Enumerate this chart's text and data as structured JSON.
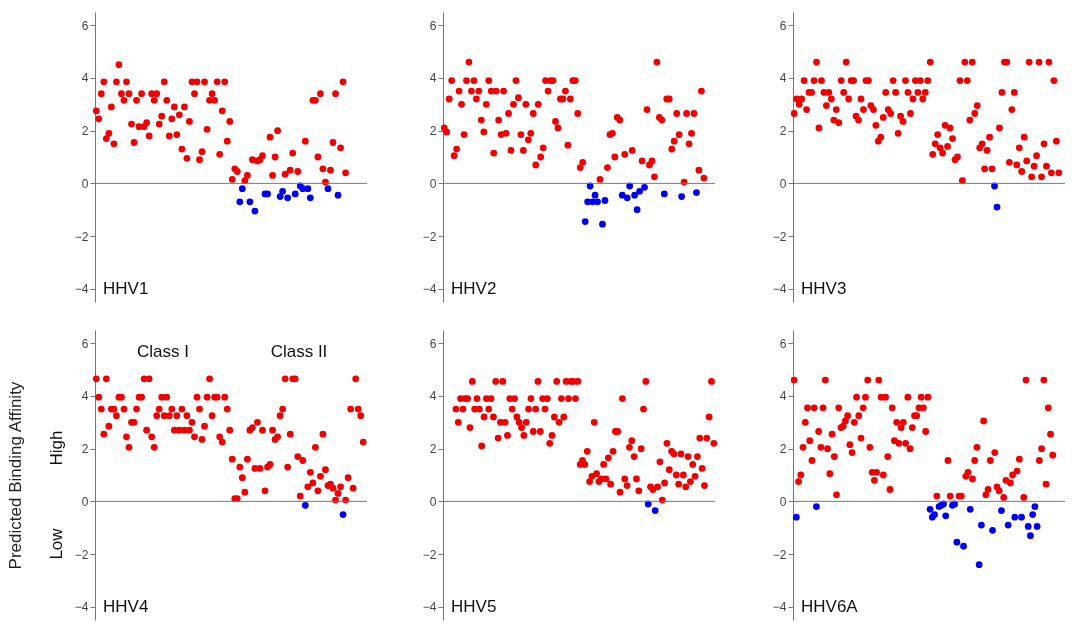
{
  "chart_data": [
    {
      "type": "scatter",
      "title": "HHV1",
      "marker": "circle",
      "ylim": [
        -4.5,
        6.5
      ],
      "yticks": [
        -4,
        -2,
        0,
        2,
        4,
        6
      ],
      "tick_labels": "y",
      "ref_lines": [
        {
          "axis": "y",
          "value": 0
        }
      ],
      "categories": [
        null,
        null,
        null,
        null,
        null,
        null,
        null,
        null,
        null,
        null,
        null,
        null,
        null,
        null,
        null,
        null,
        null,
        null,
        null,
        null,
        null,
        null,
        null,
        null,
        null,
        null,
        null,
        null,
        null,
        null,
        null,
        null,
        null,
        null,
        null,
        null,
        null,
        null,
        null,
        null,
        null,
        null,
        null,
        null,
        null,
        null,
        null,
        null,
        null,
        null,
        null,
        null,
        null,
        null,
        null,
        null,
        null,
        null,
        null,
        null,
        null,
        null,
        null,
        null,
        null,
        null,
        null,
        null,
        null,
        null,
        null,
        null,
        null,
        null,
        null,
        null,
        null,
        null,
        null,
        null,
        null,
        null,
        null,
        null,
        null,
        null,
        null,
        null,
        null,
        null,
        null,
        null,
        null,
        null,
        null,
        null,
        null,
        null,
        null,
        null,
        null,
        null,
        null,
        null,
        null,
        null,
        null,
        null
      ],
      "values": [
        2.75,
        2.45,
        3.4,
        3.85,
        1.7,
        1.9,
        2.9,
        1.5,
        3.85,
        4.5,
        3.4,
        3.15,
        3.85,
        3.4,
        2.25,
        1.55,
        3.15,
        2.15,
        3.4,
        2.15,
        2.3,
        1.8,
        3.4,
        3.15,
        3.4,
        2.25,
        2.55,
        3.85,
        3.15,
        1.8,
        2.45,
        2.9,
        1.85,
        2.6,
        1.3,
        2.9,
        0.95,
        2.35,
        3.85,
        3.4,
        3.85,
        0.9,
        1.2,
        3.85,
        2.05,
        3.15,
        3.4,
        3.15,
        3.85,
        1.1,
        2.75,
        3.85,
        1.6,
        2.35,
        0.15,
        0.55,
        0.45,
        -0.7,
        -0.2,
        0.1,
        0.3,
        -0.7,
        0.9,
        -1.05,
        0.85,
        0.9,
        1.05,
        -0.4,
        -0.4,
        1.75,
        0.3,
        1.0,
        2.0,
        -0.5,
        -0.3,
        0.35,
        -0.55,
        0.5,
        1.15,
        -0.4,
        0.45,
        -0.1,
        -0.2,
        1.6,
        -0.2,
        -0.55,
        3.15,
        3.15,
        1.0,
        3.4,
        0.55,
        0.05,
        -0.2,
        0.5,
        1.55,
        3.4,
        -0.45,
        1.35,
        3.85,
        0.4,
        null,
        null,
        null,
        null,
        null,
        null,
        null,
        null
      ],
      "colors": [
        "#f00000",
        "#f00000",
        "#f00000",
        "#f00000",
        "#f00000",
        "#f00000",
        "#f00000",
        "#f00000",
        "#f00000",
        "#f00000",
        "#f00000",
        "#f00000",
        "#f00000",
        "#f00000",
        "#f00000",
        "#f00000",
        "#f00000",
        "#f00000",
        "#f00000",
        "#f00000",
        "#f00000",
        "#f00000",
        "#f00000",
        "#f00000",
        "#f00000",
        "#f00000",
        "#f00000",
        "#f00000",
        "#f00000",
        "#f00000",
        "#f00000",
        "#f00000",
        "#f00000",
        "#f00000",
        "#f00000",
        "#f00000",
        "#f00000",
        "#f00000",
        "#f00000",
        "#f00000",
        "#f00000",
        "#f00000",
        "#f00000",
        "#f00000",
        "#f00000",
        "#f00000",
        "#f00000",
        "#f00000",
        "#f00000",
        "#f00000",
        "#f00000",
        "#f00000",
        "#f00000",
        "#f00000",
        "#f00000",
        "#f00000",
        "#f00000",
        "#0000f0",
        "#0000f0",
        "#f00000",
        "#f00000",
        "#0000f0",
        "#f00000",
        "#0000f0",
        "#f00000",
        "#f00000",
        "#f00000",
        "#0000f0",
        "#0000f0",
        "#f00000",
        "#f00000",
        "#f00000",
        "#f00000",
        "#0000f0",
        "#0000f0",
        "#f00000",
        "#0000f0",
        "#f00000",
        "#f00000",
        "#0000f0",
        "#f00000",
        "#0000f0",
        "#0000f0",
        "#f00000",
        "#0000f0",
        "#0000f0",
        "#f00000",
        "#f00000",
        "#f00000",
        "#f00000",
        "#f00000",
        "#f00000",
        "#0000f0",
        "#f00000",
        "#f00000",
        "#f00000",
        "#0000f0",
        "#f00000",
        "#f00000",
        "#f00000",
        null,
        null,
        null,
        null,
        null,
        null,
        null,
        null
      ]
    },
    {
      "type": "scatter",
      "title": "HHV2",
      "marker": "circle",
      "ylim": [
        -4.5,
        6.5
      ],
      "yticks": [
        -4,
        -2,
        0,
        2,
        4,
        6
      ],
      "tick_labels": "y",
      "ref_lines": [
        {
          "axis": "y",
          "value": 0
        }
      ],
      "categories": [
        null,
        null,
        null,
        null,
        null,
        null,
        null,
        null,
        null,
        null,
        null,
        null,
        null,
        null,
        null,
        null,
        null,
        null,
        null,
        null,
        null,
        null,
        null,
        null,
        null,
        null,
        null,
        null,
        null,
        null,
        null,
        null,
        null,
        null,
        null,
        null,
        null,
        null,
        null,
        null,
        null,
        null,
        null,
        null,
        null,
        null,
        null,
        null,
        null,
        null,
        null,
        null,
        null,
        null,
        null,
        null,
        null,
        null,
        null,
        null,
        null,
        null,
        null,
        null,
        null,
        null,
        null,
        null,
        null,
        null,
        null,
        null,
        null,
        null,
        null,
        null,
        null,
        null,
        null,
        null,
        null,
        null,
        null,
        null,
        null,
        null,
        null,
        null,
        null,
        null,
        null,
        null,
        null,
        null,
        null,
        null,
        null,
        null,
        null,
        null,
        null,
        null,
        null,
        null,
        null,
        null,
        null,
        null,
        null,
        null
      ],
      "values": [
        2.1,
        1.95,
        3.2,
        3.9,
        1.05,
        1.3,
        3.5,
        3.0,
        1.85,
        3.9,
        4.6,
        3.5,
        3.9,
        3.2,
        3.5,
        2.4,
        1.95,
        3.0,
        3.9,
        3.5,
        1.15,
        3.5,
        2.4,
        1.85,
        3.5,
        1.9,
        2.65,
        1.25,
        3.0,
        3.9,
        3.25,
        1.85,
        1.25,
        3.0,
        1.65,
        1.9,
        2.65,
        0.7,
        3.0,
        1.0,
        1.35,
        3.9,
        3.5,
        3.9,
        3.9,
        2.35,
        2.1,
        3.2,
        3.2,
        3.5,
        1.45,
        3.2,
        3.9,
        3.9,
        2.65,
        0.6,
        0.8,
        -1.45,
        -0.7,
        -0.1,
        -0.7,
        -0.45,
        -0.7,
        0.15,
        -1.55,
        -0.65,
        0.6,
        1.85,
        1.9,
        1.0,
        2.5,
        2.4,
        -0.45,
        1.1,
        -0.55,
        -0.1,
        1.25,
        -0.45,
        -1.0,
        -0.3,
        0.85,
        -0.15,
        2.8,
        0.7,
        0.85,
        0.25,
        4.6,
        2.5,
        2.4,
        -0.4,
        3.2,
        3.2,
        1.3,
        1.6,
        2.65,
        1.85,
        -0.5,
        0.05,
        2.65,
        1.5,
        1.9,
        2.65,
        -0.35,
        0.5,
        3.5,
        0.2,
        null,
        null,
        null,
        null
      ],
      "colors": [
        "#f00000",
        "#f00000",
        "#f00000",
        "#f00000",
        "#f00000",
        "#f00000",
        "#f00000",
        "#f00000",
        "#f00000",
        "#f00000",
        "#f00000",
        "#f00000",
        "#f00000",
        "#f00000",
        "#f00000",
        "#f00000",
        "#f00000",
        "#f00000",
        "#f00000",
        "#f00000",
        "#f00000",
        "#f00000",
        "#f00000",
        "#f00000",
        "#f00000",
        "#f00000",
        "#f00000",
        "#f00000",
        "#f00000",
        "#f00000",
        "#f00000",
        "#f00000",
        "#f00000",
        "#f00000",
        "#f00000",
        "#f00000",
        "#f00000",
        "#f00000",
        "#f00000",
        "#f00000",
        "#f00000",
        "#f00000",
        "#f00000",
        "#f00000",
        "#f00000",
        "#f00000",
        "#f00000",
        "#f00000",
        "#f00000",
        "#f00000",
        "#f00000",
        "#f00000",
        "#f00000",
        "#f00000",
        "#f00000",
        "#f00000",
        "#f00000",
        "#0000f0",
        "#0000f0",
        "#0000f0",
        "#0000f0",
        "#0000f0",
        "#0000f0",
        "#f00000",
        "#0000f0",
        "#0000f0",
        "#f00000",
        "#f00000",
        "#f00000",
        "#f00000",
        "#f00000",
        "#f00000",
        "#0000f0",
        "#f00000",
        "#0000f0",
        "#0000f0",
        "#f00000",
        "#0000f0",
        "#0000f0",
        "#0000f0",
        "#f00000",
        "#0000f0",
        "#f00000",
        "#f00000",
        "#f00000",
        "#f00000",
        "#f00000",
        "#f00000",
        "#f00000",
        "#0000f0",
        "#f00000",
        "#f00000",
        "#f00000",
        "#f00000",
        "#f00000",
        "#f00000",
        "#0000f0",
        "#f00000",
        "#f00000",
        "#f00000",
        "#f00000",
        "#f00000",
        "#0000f0",
        "#f00000",
        "#f00000",
        "#f00000",
        null,
        null,
        null,
        null
      ]
    },
    {
      "type": "scatter",
      "title": "HHV3",
      "marker": "circle",
      "ylim": [
        -4.5,
        6.5
      ],
      "yticks": [
        -4,
        -2,
        0,
        2,
        4,
        6
      ],
      "tick_labels": "y",
      "ref_lines": [
        {
          "axis": "y",
          "value": 0
        }
      ],
      "categories": [
        null,
        null,
        null,
        null,
        null,
        null,
        null,
        null,
        null,
        null,
        null,
        null,
        null,
        null,
        null,
        null,
        null,
        null,
        null,
        null,
        null,
        null,
        null,
        null,
        null,
        null,
        null,
        null,
        null,
        null,
        null,
        null,
        null,
        null,
        null,
        null,
        null,
        null,
        null,
        null,
        null,
        null,
        null,
        null,
        null,
        null,
        null,
        null,
        null,
        null,
        null,
        null,
        null,
        null,
        null,
        null,
        null,
        null,
        null,
        null,
        null,
        null,
        null,
        null,
        null,
        null,
        null,
        null,
        null,
        null,
        null,
        null,
        null,
        null,
        null,
        null,
        null,
        null,
        null,
        null,
        null,
        null,
        null,
        null,
        null,
        null,
        null,
        null,
        null,
        null,
        null,
        null,
        null,
        null,
        null,
        null,
        null,
        null,
        null,
        null,
        null,
        null,
        null,
        null,
        null,
        null,
        null,
        null,
        null,
        null
      ],
      "values": [
        2.65,
        3.2,
        3.0,
        3.2,
        3.9,
        2.8,
        3.45,
        3.45,
        3.9,
        4.6,
        2.1,
        3.9,
        3.45,
        2.95,
        3.45,
        3.2,
        2.4,
        2.8,
        2.3,
        3.9,
        3.45,
        4.6,
        3.2,
        3.9,
        3.9,
        2.55,
        2.4,
        3.2,
        2.8,
        3.9,
        3.9,
        2.95,
        2.8,
        2.2,
        1.6,
        1.75,
        2.5,
        3.45,
        2.8,
        2.65,
        3.9,
        3.45,
        1.9,
        2.55,
        2.35,
        3.9,
        3.45,
        2.65,
        3.2,
        3.9,
        3.45,
        3.9,
        3.2,
        3.45,
        3.9,
        4.6,
        1.1,
        1.5,
        1.85,
        1.35,
        1.15,
        2.2,
        1.4,
        2.1,
        1.7,
        0.9,
        1.0,
        3.9,
        0.1,
        4.6,
        3.9,
        2.4,
        4.6,
        2.65,
        2.95,
        1.35,
        1.5,
        0.55,
        1.25,
        1.75,
        0.55,
        -0.1,
        -0.9,
        2.1,
        3.45,
        4.6,
        4.6,
        0.8,
        2.8,
        3.45,
        0.7,
        1.35,
        0.45,
        1.75,
        0.85,
        4.6,
        0.25,
        0.65,
        1.05,
        4.6,
        0.25,
        1.5,
        0.65,
        4.6,
        0.4,
        3.9,
        1.6,
        0.4,
        null,
        null
      ],
      "colors": [
        "#f00000",
        "#f00000",
        "#f00000",
        "#f00000",
        "#f00000",
        "#f00000",
        "#f00000",
        "#f00000",
        "#f00000",
        "#f00000",
        "#f00000",
        "#f00000",
        "#f00000",
        "#f00000",
        "#f00000",
        "#f00000",
        "#f00000",
        "#f00000",
        "#f00000",
        "#f00000",
        "#f00000",
        "#f00000",
        "#f00000",
        "#f00000",
        "#f00000",
        "#f00000",
        "#f00000",
        "#f00000",
        "#f00000",
        "#f00000",
        "#f00000",
        "#f00000",
        "#f00000",
        "#f00000",
        "#f00000",
        "#f00000",
        "#f00000",
        "#f00000",
        "#f00000",
        "#f00000",
        "#f00000",
        "#f00000",
        "#f00000",
        "#f00000",
        "#f00000",
        "#f00000",
        "#f00000",
        "#f00000",
        "#f00000",
        "#f00000",
        "#f00000",
        "#f00000",
        "#f00000",
        "#f00000",
        "#f00000",
        "#f00000",
        "#f00000",
        "#f00000",
        "#f00000",
        "#f00000",
        "#f00000",
        "#f00000",
        "#f00000",
        "#f00000",
        "#f00000",
        "#f00000",
        "#f00000",
        "#f00000",
        "#f00000",
        "#f00000",
        "#f00000",
        "#f00000",
        "#f00000",
        "#f00000",
        "#f00000",
        "#f00000",
        "#f00000",
        "#f00000",
        "#f00000",
        "#f00000",
        "#f00000",
        "#0000f0",
        "#0000f0",
        "#f00000",
        "#f00000",
        "#f00000",
        "#f00000",
        "#f00000",
        "#f00000",
        "#f00000",
        "#f00000",
        "#f00000",
        "#f00000",
        "#f00000",
        "#f00000",
        "#f00000",
        "#f00000",
        "#f00000",
        "#f00000",
        "#f00000",
        "#f00000",
        "#f00000",
        "#f00000",
        "#f00000",
        "#f00000",
        "#f00000",
        "#f00000",
        "#f00000",
        null,
        null
      ]
    },
    {
      "type": "scatter",
      "title": "HHV4",
      "marker": "circle",
      "ylabel": "Predicted Binding Affinity",
      "annotations": [
        "Class I",
        "Class II",
        "High",
        "Low"
      ],
      "ylim": [
        -4.5,
        6.5
      ],
      "yticks": [
        -4,
        -2,
        0,
        2,
        4,
        6
      ],
      "tick_labels": "y",
      "ref_lines": [
        {
          "axis": "y",
          "value": 0
        }
      ],
      "categories": [
        null,
        null,
        null,
        null,
        null,
        null,
        null,
        null,
        null,
        null,
        null,
        null,
        null,
        null,
        null,
        null,
        null,
        null,
        null,
        null,
        null,
        null,
        null,
        null,
        null,
        null,
        null,
        null,
        null,
        null,
        null,
        null,
        null,
        null,
        null,
        null,
        null,
        null,
        null,
        null,
        null,
        null,
        null,
        null,
        null,
        null,
        null,
        null,
        null,
        null,
        null,
        null,
        null,
        null,
        null,
        null,
        null,
        null,
        null,
        null,
        null,
        null,
        null,
        null,
        null,
        null,
        null,
        null,
        null,
        null,
        null,
        null,
        null,
        null,
        null,
        null,
        null,
        null,
        null,
        null,
        null,
        null,
        null,
        null,
        null,
        null,
        null,
        null,
        null,
        null,
        null,
        null,
        null,
        null,
        null,
        null,
        null,
        null,
        null,
        null,
        null,
        null,
        null,
        null,
        null,
        null,
        null,
        null
      ],
      "values": [
        4.65,
        3.95,
        3.5,
        2.55,
        4.65,
        2.85,
        3.5,
        3.5,
        3.25,
        3.95,
        3.95,
        3.5,
        2.45,
        2.05,
        3.0,
        3.0,
        3.5,
        3.95,
        3.95,
        4.65,
        2.7,
        4.65,
        2.45,
        2.05,
        3.25,
        3.5,
        3.95,
        3.25,
        3.95,
        3.25,
        3.5,
        2.7,
        3.25,
        2.7,
        3.5,
        2.7,
        3.25,
        2.7,
        3.0,
        2.45,
        3.95,
        3.5,
        2.35,
        2.85,
        3.95,
        4.65,
        3.25,
        3.95,
        3.95,
        2.45,
        2.25,
        3.95,
        3.5,
        2.7,
        1.6,
        0.1,
        0.1,
        1.3,
        0.9,
        0.35,
        1.6,
        2.7,
        2.8,
        1.25,
        3.0,
        1.25,
        2.7,
        0.4,
        1.3,
        1.4,
        2.7,
        2.35,
        2.45,
        3.25,
        3.5,
        4.65,
        1.3,
        2.55,
        4.65,
        4.65,
        1.7,
        0.2,
        1.55,
        -0.15,
        0.55,
        1.1,
        0.7,
        2.05,
        0.4,
        0.95,
        2.55,
        1.2,
        0.6,
        0.65,
        0.5,
        0.05,
        0.3,
        0.55,
        -0.5,
        0.05,
        0.9,
        3.5,
        0.5,
        4.65,
        3.5,
        3.25,
        2.25,
        null
      ],
      "colors": [
        "#f00000",
        "#f00000",
        "#f00000",
        "#f00000",
        "#f00000",
        "#f00000",
        "#f00000",
        "#f00000",
        "#f00000",
        "#f00000",
        "#f00000",
        "#f00000",
        "#f00000",
        "#f00000",
        "#f00000",
        "#f00000",
        "#f00000",
        "#f00000",
        "#f00000",
        "#f00000",
        "#f00000",
        "#f00000",
        "#f00000",
        "#f00000",
        "#f00000",
        "#f00000",
        "#f00000",
        "#f00000",
        "#f00000",
        "#f00000",
        "#f00000",
        "#f00000",
        "#f00000",
        "#f00000",
        "#f00000",
        "#f00000",
        "#f00000",
        "#f00000",
        "#f00000",
        "#f00000",
        "#f00000",
        "#f00000",
        "#f00000",
        "#f00000",
        "#f00000",
        "#f00000",
        "#f00000",
        "#f00000",
        "#f00000",
        "#f00000",
        "#f00000",
        "#f00000",
        "#f00000",
        "#f00000",
        "#f00000",
        "#f00000",
        "#f00000",
        "#f00000",
        "#f00000",
        "#f00000",
        "#f00000",
        "#f00000",
        "#f00000",
        "#f00000",
        "#f00000",
        "#f00000",
        "#f00000",
        "#f00000",
        "#f00000",
        "#f00000",
        "#f00000",
        "#f00000",
        "#f00000",
        "#f00000",
        "#f00000",
        "#f00000",
        "#f00000",
        "#f00000",
        "#f00000",
        "#f00000",
        "#f00000",
        "#f00000",
        "#f00000",
        "#0000f0",
        "#f00000",
        "#f00000",
        "#f00000",
        "#f00000",
        "#f00000",
        "#f00000",
        "#f00000",
        "#f00000",
        "#f00000",
        "#f00000",
        "#f00000",
        "#f00000",
        "#f00000",
        "#f00000",
        "#0000f0",
        "#f00000",
        "#f00000",
        "#f00000",
        "#f00000",
        "#f00000",
        "#f00000",
        "#f00000",
        "#f00000",
        null
      ]
    },
    {
      "type": "scatter",
      "title": "HHV5",
      "marker": "circle",
      "ylim": [
        -4.5,
        6.5
      ],
      "yticks": [
        -4,
        -2,
        0,
        2,
        4,
        6
      ],
      "tick_labels": "y",
      "ref_lines": [
        {
          "axis": "y",
          "value": 0
        }
      ],
      "categories": [
        null,
        null,
        null,
        null,
        null,
        null,
        null,
        null,
        null,
        null,
        null,
        null,
        null,
        null,
        null,
        null,
        null,
        null,
        null,
        null,
        null,
        null,
        null,
        null,
        null,
        null,
        null,
        null,
        null,
        null,
        null,
        null,
        null,
        null,
        null,
        null,
        null,
        null,
        null,
        null,
        null,
        null,
        null,
        null,
        null,
        null,
        null,
        null,
        null,
        null,
        null,
        null,
        null,
        null,
        null,
        null,
        null,
        null,
        null,
        null,
        null,
        null,
        null,
        null,
        null,
        null,
        null,
        null,
        null,
        null,
        null,
        null,
        null,
        null,
        null,
        null,
        null,
        null,
        null,
        null,
        null,
        null,
        null,
        null,
        null,
        null,
        null,
        null,
        null,
        null,
        null,
        null,
        null,
        null,
        null,
        null,
        null,
        null,
        null,
        null,
        null,
        null,
        null,
        null,
        null,
        null,
        null,
        null,
        null,
        null,
        null,
        null,
        null,
        null,
        null,
        null
      ],
      "values": [
        null,
        null,
        null,
        null,
        null,
        3.5,
        3.0,
        3.9,
        3.5,
        3.9,
        3.9,
        2.8,
        4.55,
        3.5,
        3.9,
        3.5,
        2.1,
        3.2,
        3.9,
        3.5,
        3.9,
        3.2,
        4.55,
        2.4,
        3.0,
        4.55,
        3.0,
        2.5,
        3.9,
        3.5,
        3.9,
        3.2,
        3.0,
        2.8,
        2.5,
        3.0,
        3.5,
        3.9,
        2.65,
        3.5,
        4.55,
        2.65,
        3.9,
        3.5,
        3.9,
        2.2,
        2.5,
        3.2,
        4.55,
        3.0,
        3.9,
        3.2,
        4.55,
        3.9,
        4.55,
        4.55,
        3.9,
        4.55,
        1.4,
        1.55,
        1.4,
        1.9,
        0.75,
        0.95,
        3.0,
        1.05,
        0.75,
        0.85,
        1.4,
        0.85,
        1.65,
        0.65,
        1.9,
        2.65,
        2.65,
        0.35,
        3.9,
        0.85,
        0.6,
        2.05,
        2.3,
        1.7,
        0.85,
        0.4,
        2.0,
        3.5,
        4.55,
        -0.1,
        0.55,
        0.45,
        -0.35,
        0.55,
        1.5,
        0.05,
        0.7,
        2.2,
        1.2,
        1.9,
        1.8,
        1.0,
        0.65,
        1.8,
        1.0,
        0.55,
        1.7,
        0.75,
        1.4,
        0.95,
        1.7,
        2.4,
        1.25,
        0.6,
        2.4,
        3.2,
        4.55,
        2.2
      ],
      "colors": [
        null,
        null,
        null,
        null,
        null,
        "#f00000",
        "#f00000",
        "#f00000",
        "#f00000",
        "#f00000",
        "#f00000",
        "#f00000",
        "#f00000",
        "#f00000",
        "#f00000",
        "#f00000",
        "#f00000",
        "#f00000",
        "#f00000",
        "#f00000",
        "#f00000",
        "#f00000",
        "#f00000",
        "#f00000",
        "#f00000",
        "#f00000",
        "#f00000",
        "#f00000",
        "#f00000",
        "#f00000",
        "#f00000",
        "#f00000",
        "#f00000",
        "#f00000",
        "#f00000",
        "#f00000",
        "#f00000",
        "#f00000",
        "#f00000",
        "#f00000",
        "#f00000",
        "#f00000",
        "#f00000",
        "#f00000",
        "#f00000",
        "#f00000",
        "#f00000",
        "#f00000",
        "#f00000",
        "#f00000",
        "#f00000",
        "#f00000",
        "#f00000",
        "#f00000",
        "#f00000",
        "#f00000",
        "#f00000",
        "#f00000",
        "#f00000",
        "#f00000",
        "#f00000",
        "#f00000",
        "#f00000",
        "#f00000",
        "#f00000",
        "#f00000",
        "#f00000",
        "#f00000",
        "#f00000",
        "#f00000",
        "#f00000",
        "#f00000",
        "#f00000",
        "#f00000",
        "#f00000",
        "#f00000",
        "#f00000",
        "#f00000",
        "#f00000",
        "#f00000",
        "#f00000",
        "#f00000",
        "#f00000",
        "#f00000",
        "#f00000",
        "#f00000",
        "#f00000",
        "#0000f0",
        "#f00000",
        "#f00000",
        "#0000f0",
        "#f00000",
        "#f00000",
        "#f00000",
        "#f00000",
        "#f00000",
        "#f00000",
        "#f00000",
        "#f00000",
        "#f00000",
        "#f00000",
        "#f00000",
        "#f00000",
        "#f00000",
        "#f00000",
        "#f00000",
        "#f00000",
        "#f00000",
        "#f00000",
        "#f00000",
        "#f00000",
        "#f00000",
        "#f00000",
        "#f00000",
        "#f00000",
        "#f00000"
      ]
    },
    {
      "type": "scatter",
      "title": "HHV6A",
      "marker": "circle",
      "ylim": [
        -4.5,
        6.5
      ],
      "yticks": [
        -4,
        -2,
        0,
        2,
        4,
        6
      ],
      "tick_labels": "y",
      "ref_lines": [
        {
          "axis": "y",
          "value": 0
        }
      ],
      "categories": [
        null,
        null,
        null,
        null,
        null,
        null,
        null,
        null,
        null,
        null,
        null,
        null,
        null,
        null,
        null,
        null,
        null,
        null,
        null,
        null,
        null,
        null,
        null,
        null,
        null,
        null,
        null,
        null,
        null,
        null,
        null,
        null,
        null,
        null,
        null,
        null,
        null,
        null,
        null,
        null,
        null,
        null,
        null,
        null,
        null,
        null,
        null,
        null,
        null,
        null,
        null,
        null,
        null,
        null,
        null,
        null,
        null,
        null,
        null,
        null,
        null,
        null,
        null,
        null,
        null,
        null,
        null,
        null,
        null,
        null,
        null,
        null,
        null,
        null,
        null,
        null,
        null,
        null,
        null,
        null,
        null,
        null,
        null,
        null,
        null,
        null,
        null,
        null,
        null,
        null,
        null,
        null,
        null,
        null,
        null,
        null,
        null,
        null,
        null,
        null,
        null,
        null,
        null,
        null,
        null,
        null,
        null,
        null,
        null,
        null,
        null,
        null,
        null,
        null,
        null,
        null,
        null,
        null,
        null,
        null,
        null,
        null
      ],
      "values": [
        4.6,
        -0.6,
        0.75,
        1.0,
        2.05,
        3.0,
        3.55,
        2.3,
        1.55,
        3.55,
        -0.2,
        2.65,
        2.05,
        3.55,
        4.6,
        2.0,
        1.05,
        2.55,
        1.7,
        0.25,
        3.55,
        2.8,
        2.85,
        3.05,
        3.25,
        2.15,
        1.85,
        3.0,
        3.95,
        3.25,
        2.4,
        3.55,
        3.95,
        4.6,
        2.05,
        1.1,
        0.8,
        1.1,
        4.6,
        3.95,
        1.0,
        3.95,
        1.7,
        0.45,
        3.55,
        2.3,
        3.0,
        2.2,
        2.8,
        3.0,
        2.2,
        3.95,
        2.0,
        2.8,
        3.25,
        3.25,
        3.55,
        3.95,
        3.55,
        2.65,
        3.95,
        -0.3,
        -0.6,
        -0.5,
        0.2,
        -0.2,
        -0.15,
        -0.1,
        -0.55,
        1.55,
        0.2,
        -0.15,
        -0.1,
        -1.55,
        0.2,
        0.2,
        -1.7,
        0.95,
        1.1,
        -0.3,
        0.85,
        1.55,
        2.05,
        -2.4,
        -0.9,
        3.05,
        0.25,
        0.45,
        1.55,
        -1.1,
        1.85,
        0.55,
        0.4,
        -0.35,
        0.15,
        0.8,
        -0.9,
        0.7,
        1.0,
        -0.6,
        1.15,
        1.6,
        -0.6,
        0.15,
        4.6,
        -0.95,
        -1.3,
        -0.5,
        -0.2,
        -0.95,
        1.55,
        2.0,
        4.6,
        0.65,
        3.55,
        2.55,
        1.75,
        null,
        null,
        null,
        null,
        null
      ],
      "colors": [
        "#f00000",
        "#0000f0",
        "#f00000",
        "#f00000",
        "#f00000",
        "#f00000",
        "#f00000",
        "#f00000",
        "#f00000",
        "#f00000",
        "#0000f0",
        "#f00000",
        "#f00000",
        "#f00000",
        "#f00000",
        "#f00000",
        "#f00000",
        "#f00000",
        "#f00000",
        "#f00000",
        "#f00000",
        "#f00000",
        "#f00000",
        "#f00000",
        "#f00000",
        "#f00000",
        "#f00000",
        "#f00000",
        "#f00000",
        "#f00000",
        "#f00000",
        "#f00000",
        "#f00000",
        "#f00000",
        "#f00000",
        "#f00000",
        "#f00000",
        "#f00000",
        "#f00000",
        "#f00000",
        "#f00000",
        "#f00000",
        "#f00000",
        "#f00000",
        "#f00000",
        "#f00000",
        "#f00000",
        "#f00000",
        "#f00000",
        "#f00000",
        "#f00000",
        "#f00000",
        "#f00000",
        "#f00000",
        "#f00000",
        "#f00000",
        "#f00000",
        "#f00000",
        "#f00000",
        "#f00000",
        "#f00000",
        "#0000f0",
        "#0000f0",
        "#0000f0",
        "#f00000",
        "#0000f0",
        "#0000f0",
        "#0000f0",
        "#0000f0",
        "#f00000",
        "#f00000",
        "#0000f0",
        "#0000f0",
        "#0000f0",
        "#f00000",
        "#f00000",
        "#0000f0",
        "#f00000",
        "#f00000",
        "#0000f0",
        "#f00000",
        "#f00000",
        "#f00000",
        "#0000f0",
        "#0000f0",
        "#f00000",
        "#f00000",
        "#f00000",
        "#f00000",
        "#0000f0",
        "#f00000",
        "#f00000",
        "#f00000",
        "#0000f0",
        "#f00000",
        "#f00000",
        "#0000f0",
        "#f00000",
        "#f00000",
        "#0000f0",
        "#f00000",
        "#f00000",
        "#0000f0",
        "#f00000",
        "#f00000",
        "#0000f0",
        "#0000f0",
        "#0000f0",
        "#0000f0",
        "#0000f0",
        "#f00000",
        "#f00000",
        "#f00000",
        "#f00000",
        "#f00000",
        "#f00000",
        "#f00000",
        null,
        null,
        null,
        null,
        null
      ]
    }
  ]
}
